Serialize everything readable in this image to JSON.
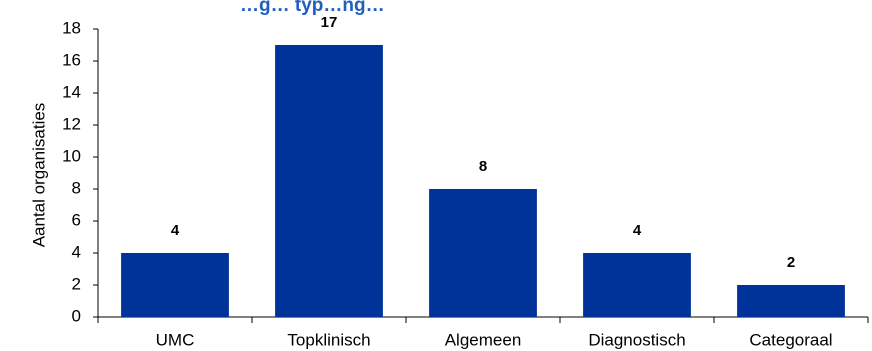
{
  "chart_data": {
    "type": "bar",
    "title": "…g… typ…ng…",
    "xlabel": "",
    "ylabel": "Aantal organisaties",
    "categories": [
      "UMC",
      "Topklinisch",
      "Algemeen",
      "Diagnostisch",
      "Categoraal"
    ],
    "values": [
      4,
      17,
      8,
      4,
      2
    ],
    "data_labels": [
      "4",
      "17",
      "8",
      "4",
      "2"
    ],
    "yticks": [
      "0",
      "2",
      "4",
      "6",
      "8",
      "10",
      "12",
      "14",
      "16",
      "18"
    ],
    "ylim": [
      0,
      18
    ],
    "grid": false,
    "legend": "none",
    "bar_color": "#003399"
  }
}
